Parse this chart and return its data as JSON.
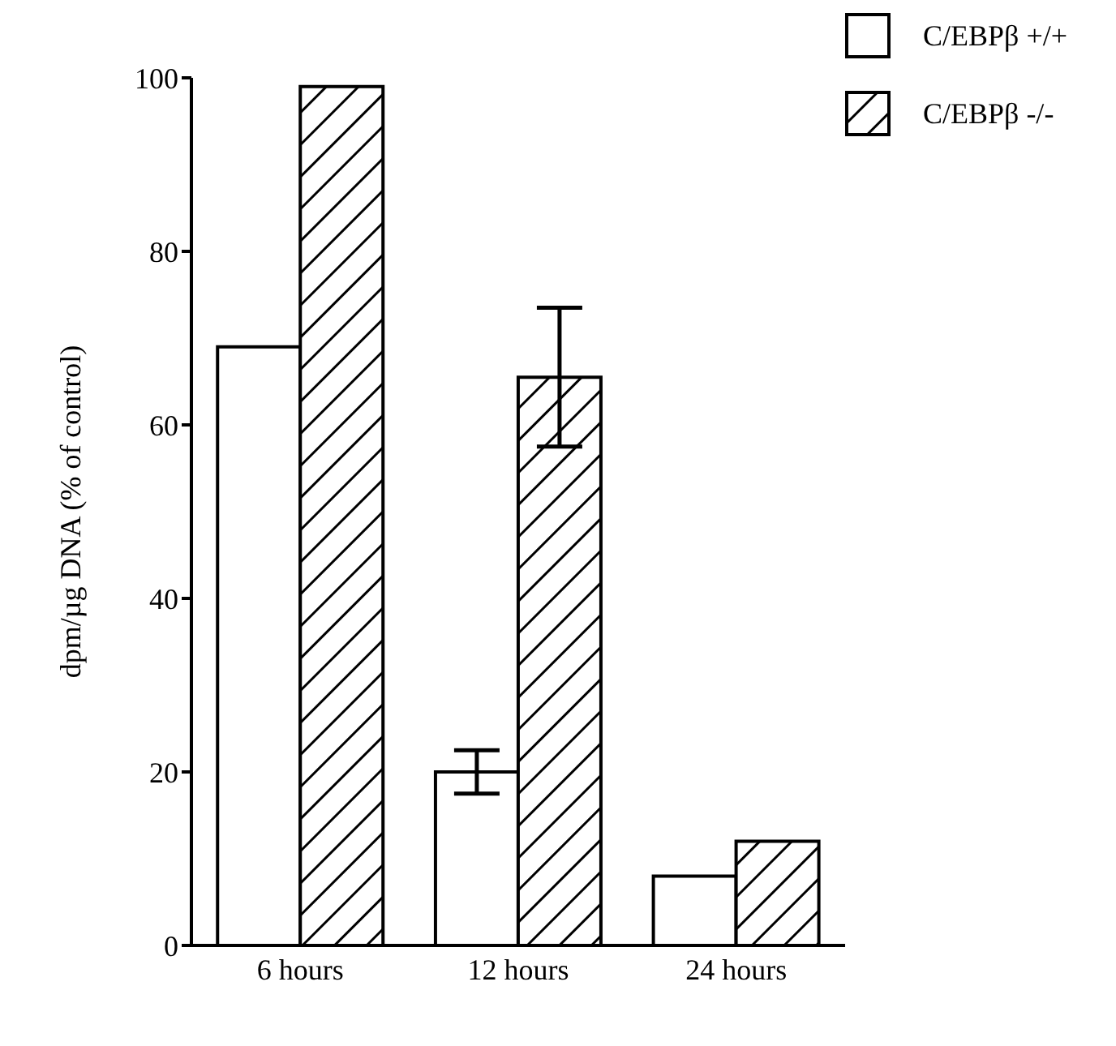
{
  "chart_data": {
    "type": "bar",
    "ylabel": "dpm/µg DNA (% of control)",
    "categories": [
      "6 hours",
      "12 hours",
      "24 hours"
    ],
    "series": [
      {
        "name": "C/EBPβ +/+",
        "color": "#ffffff",
        "values": [
          69,
          20,
          8
        ],
        "errors": [
          null,
          2.5,
          null
        ]
      },
      {
        "name": "C/EBPβ -/-",
        "color": "#000000",
        "values": [
          99,
          65.5,
          12
        ],
        "errors": [
          null,
          8,
          null
        ]
      }
    ],
    "ylim": [
      0,
      100
    ],
    "yticks": [
      0,
      20,
      40,
      60,
      80,
      100
    ],
    "grid": false,
    "legend": "top right"
  }
}
